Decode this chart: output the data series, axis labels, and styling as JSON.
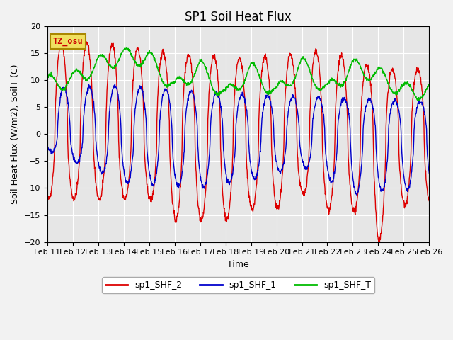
{
  "title": "SP1 Soil Heat Flux",
  "ylabel": "Soil Heat Flux (W/m2), SoilT (C)",
  "xlabel": "Time",
  "annotation": "TZ_osu",
  "ylim": [
    -20,
    20
  ],
  "legend_labels": [
    "sp1_SHF_2",
    "sp1_SHF_1",
    "sp1_SHF_T"
  ],
  "legend_colors": [
    "#dd0000",
    "#0000cc",
    "#00bb00"
  ],
  "bg_color": "#e6e6e6",
  "fig_facecolor": "#f2f2f2",
  "xtick_labels": [
    "Feb 11",
    "Feb 12",
    "Feb 13",
    "Feb 14",
    "Feb 15",
    "Feb 16",
    "Feb 17",
    "Feb 18",
    "Feb 19",
    "Feb 20",
    "Feb 21",
    "Feb 22",
    "Feb 23",
    "Feb 24",
    "Feb 25",
    "Feb 26"
  ],
  "title_fontsize": 12,
  "label_fontsize": 9,
  "tick_fontsize": 8
}
